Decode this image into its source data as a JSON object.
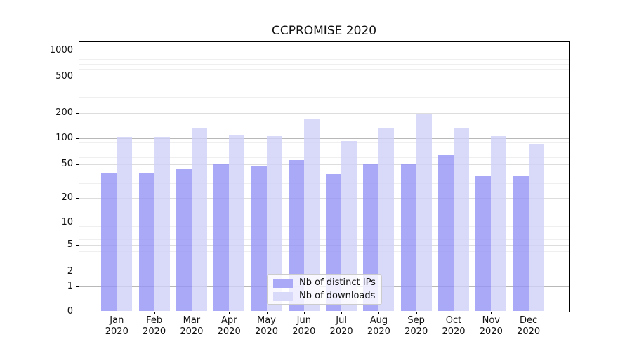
{
  "chart_data": {
    "type": "bar",
    "title": "CCPROMISE 2020",
    "year": "2020",
    "categories": [
      "Jan",
      "Feb",
      "Mar",
      "Apr",
      "May",
      "Jun",
      "Jul",
      "Aug",
      "Sep",
      "Oct",
      "Nov",
      "Dec"
    ],
    "series": [
      {
        "name": "Nb of distinct IPs",
        "color": "#a9a9f7",
        "values": [
          40,
          40,
          44,
          50,
          48,
          56,
          38,
          51,
          51,
          64,
          37,
          36
        ]
      },
      {
        "name": "Nb of downloads",
        "color": "#d9d9f9",
        "values": [
          102,
          102,
          130,
          107,
          104,
          168,
          92,
          130,
          192,
          130,
          106,
          86
        ]
      }
    ],
    "yticks": [
      0,
      1,
      2,
      5,
      10,
      20,
      50,
      100,
      200,
      500,
      1000
    ],
    "scale": "symlog",
    "ylim": [
      0,
      1320
    ],
    "xlabel": "",
    "ylabel": "",
    "grid": true,
    "legend_position": "lower-center"
  }
}
